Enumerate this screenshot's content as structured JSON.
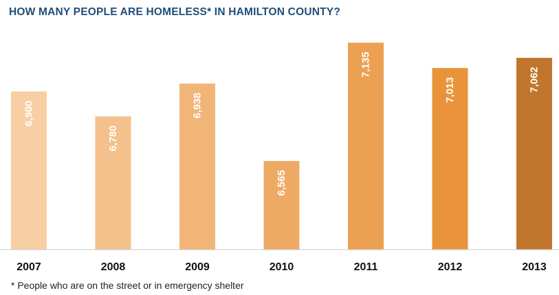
{
  "chart_data": {
    "type": "bar",
    "title": "HOW MANY PEOPLE ARE HOMELESS* IN HAMILTON COUNTY?",
    "categories": [
      "2007",
      "2008",
      "2009",
      "2010",
      "2011",
      "2012",
      "2013"
    ],
    "values": [
      6900,
      6780,
      6938,
      6565,
      7135,
      7013,
      7062
    ],
    "value_labels": [
      "6,900",
      "6,780",
      "6,938",
      "6,565",
      "7,135",
      "7,013",
      "7,062"
    ],
    "bar_colors": [
      "#f7cfa2",
      "#f4c08b",
      "#f1b578",
      "#eea964",
      "#eca052",
      "#e9943a",
      "#c0762c"
    ],
    "xlabel": "",
    "ylabel": "",
    "grid": false,
    "legend": "none",
    "footnote": "* People who are on the street or in emergency shelter"
  }
}
